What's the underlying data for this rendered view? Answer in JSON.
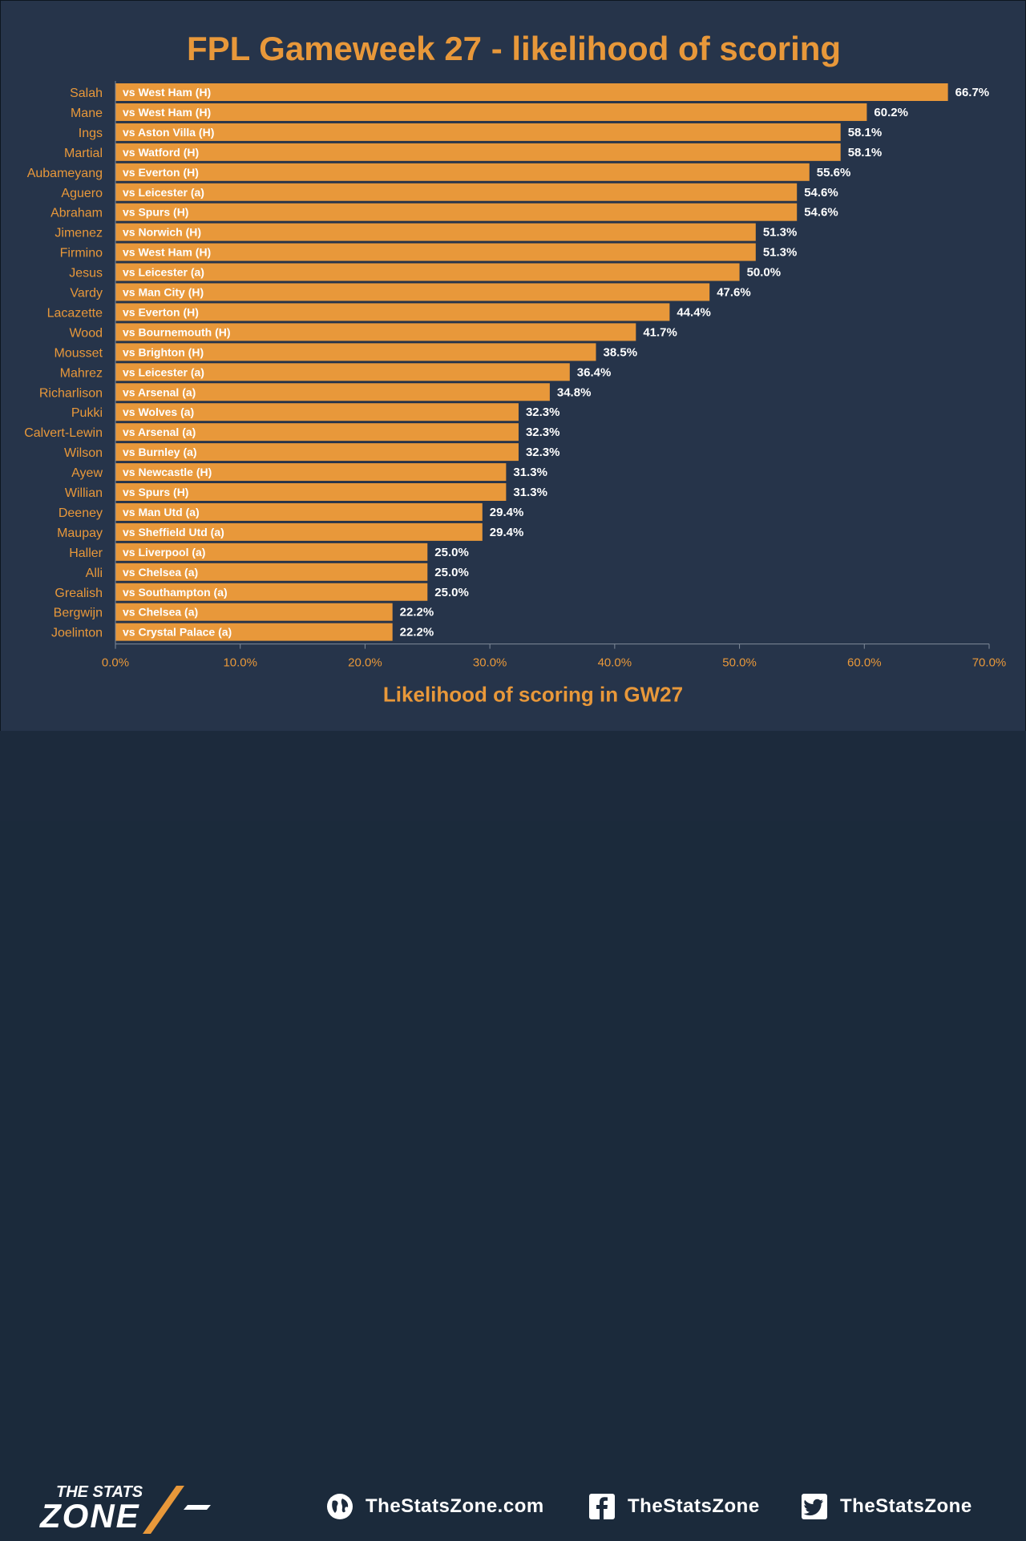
{
  "chart_data": {
    "type": "bar",
    "orientation": "horizontal",
    "title": "FPL Gameweek 27 - likelihood of scoring",
    "xlabel": "Likelihood of scoring in GW27",
    "ylabel": "",
    "xlim": [
      0,
      70
    ],
    "x_ticks": [
      "0.0%",
      "10.0%",
      "20.0%",
      "30.0%",
      "40.0%",
      "50.0%",
      "60.0%",
      "70.0%"
    ],
    "grid": false,
    "bar_color": "#e8983a",
    "categories": [
      "Salah",
      "Mane",
      "Ings",
      "Martial",
      "Aubameyang",
      "Aguero",
      "Abraham",
      "Jimenez",
      "Firmino",
      "Jesus",
      "Vardy",
      "Lacazette",
      "Wood",
      "Mousset",
      "Mahrez",
      "Richarlison",
      "Pukki",
      "Calvert-Lewin",
      "Wilson",
      "Ayew",
      "Willian",
      "Deeney",
      "Maupay",
      "Haller",
      "Alli",
      "Grealish",
      "Bergwijn",
      "Joelinton"
    ],
    "values": [
      66.7,
      60.2,
      58.1,
      58.1,
      55.6,
      54.6,
      54.6,
      51.3,
      51.3,
      50.0,
      47.6,
      44.4,
      41.7,
      38.5,
      36.4,
      34.8,
      32.3,
      32.3,
      32.3,
      31.3,
      31.3,
      29.4,
      29.4,
      25.0,
      25.0,
      25.0,
      22.2,
      22.2
    ],
    "value_labels": [
      "66.7%",
      "60.2%",
      "58.1%",
      "58.1%",
      "55.6%",
      "54.6%",
      "54.6%",
      "51.3%",
      "51.3%",
      "50.0%",
      "47.6%",
      "44.4%",
      "41.7%",
      "38.5%",
      "36.4%",
      "34.8%",
      "32.3%",
      "32.3%",
      "32.3%",
      "31.3%",
      "31.3%",
      "29.4%",
      "29.4%",
      "25.0%",
      "25.0%",
      "25.0%",
      "22.2%",
      "22.2%"
    ],
    "bar_labels": [
      "vs West Ham (H)",
      "vs West Ham (H)",
      "vs Aston Villa (H)",
      "vs Watford (H)",
      "vs Everton (H)",
      "vs Leicester (a)",
      "vs Spurs (H)",
      "vs Norwich (H)",
      "vs West Ham (H)",
      "vs Leicester (a)",
      "vs Man City (H)",
      "vs Everton (H)",
      "vs Bournemouth (H)",
      "vs Brighton (H)",
      "vs Leicester (a)",
      "vs Arsenal (a)",
      "vs Wolves (a)",
      "vs Arsenal (a)",
      "vs Burnley (a)",
      "vs Newcastle (H)",
      "vs Spurs (H)",
      "vs Man Utd (a)",
      "vs Sheffield Utd (a)",
      "vs Liverpool (a)",
      "vs Chelsea (a)",
      "vs Southampton (a)",
      "vs Chelsea (a)",
      "vs Crystal Palace (a)"
    ]
  },
  "colors": {
    "background": "#26344a",
    "footer": "#1c2a3c",
    "accent": "#e8983a",
    "player_label": "#e8983a",
    "value_label": "#ffffff",
    "axis": "#7f8a99"
  },
  "footer": {
    "logo_line1": "THE STATS",
    "logo_line2": "ZONE",
    "website": "TheStatsZone.com",
    "facebook": "TheStatsZone",
    "twitter": "TheStatsZone",
    "website_icon": "globe-icon",
    "facebook_icon": "facebook-icon",
    "twitter_icon": "twitter-icon"
  }
}
